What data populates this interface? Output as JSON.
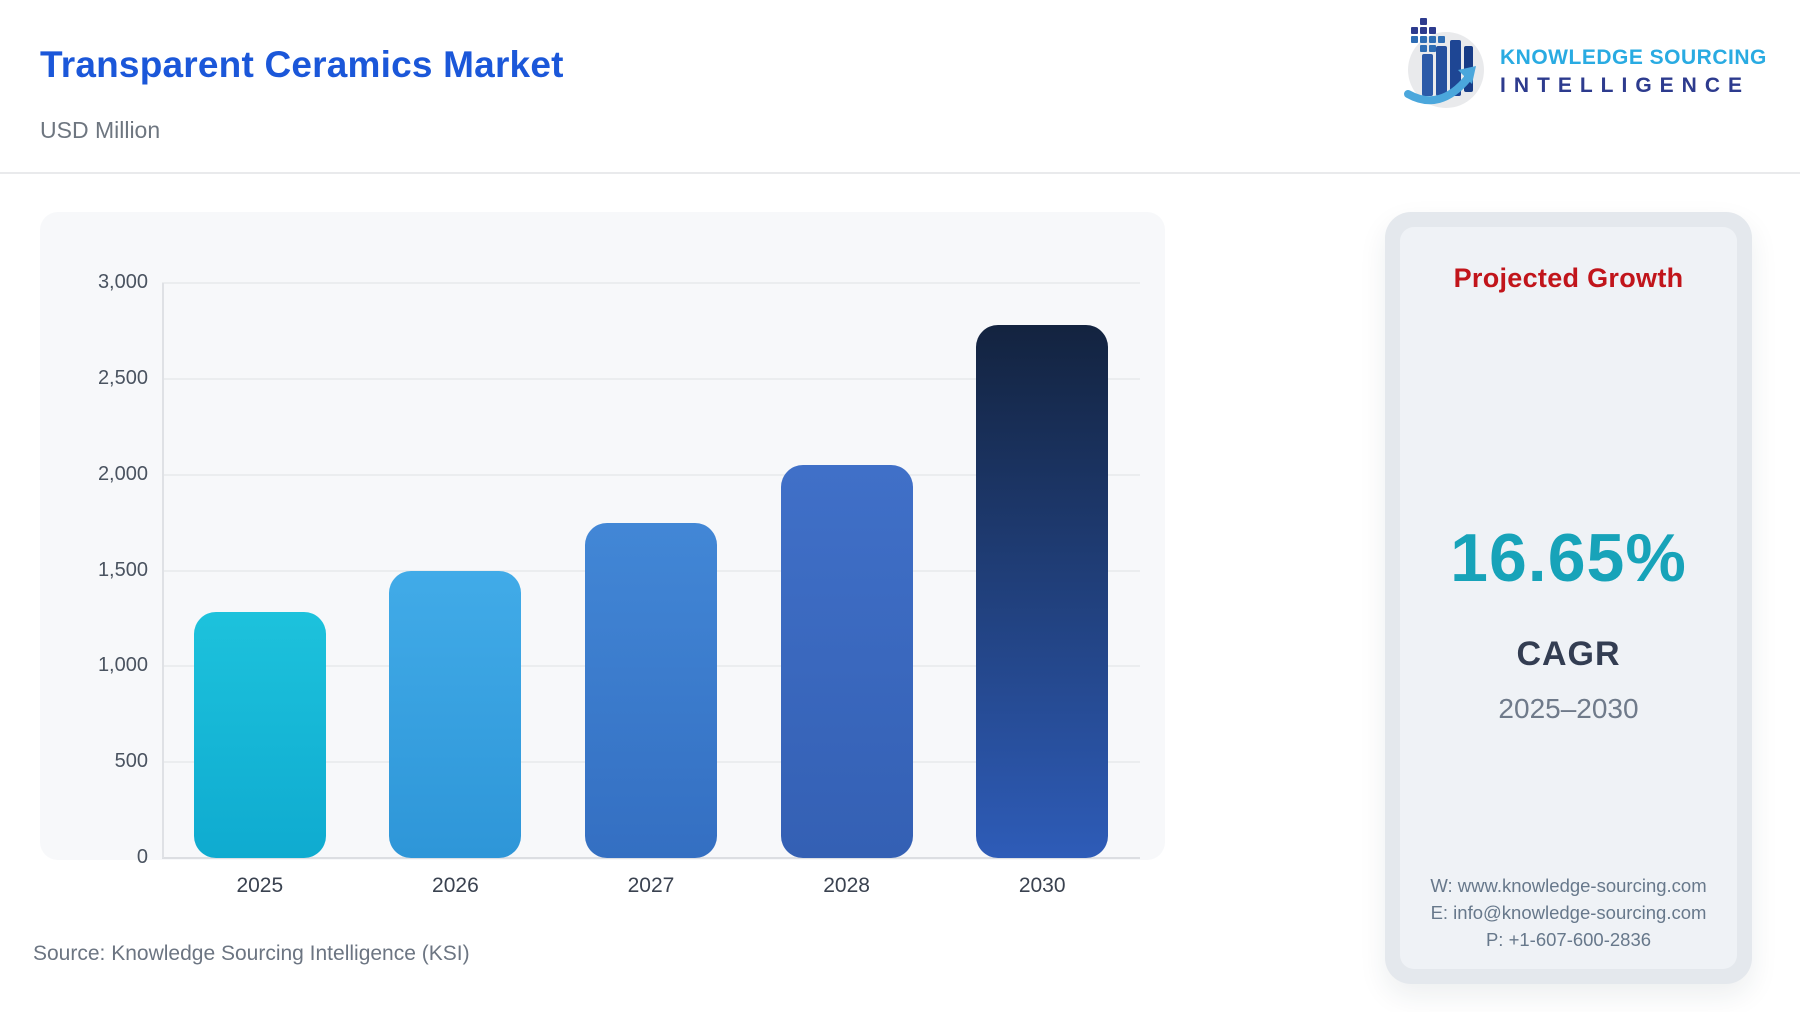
{
  "header": {
    "title": "Transparent Ceramics Market",
    "subtitle": "USD Million",
    "title_color": "#1B57D9"
  },
  "logo": {
    "line1": "KNOWLEDGE SOURCING",
    "line2": "INTELLIGENCE",
    "line1_color": "#29ABE2",
    "line2_color": "#2D3B8E"
  },
  "chart_data": {
    "type": "bar",
    "title": "Transparent Ceramics Market",
    "unit": "USD Million",
    "categories": [
      "2025",
      "2026",
      "2027",
      "2028",
      "2030"
    ],
    "values": [
      1285,
      1500,
      1750,
      2050,
      2780
    ],
    "bar_colors": [
      {
        "top": "#1DC2DC",
        "bottom": "#0FABD0"
      },
      {
        "top": "#41ABE8",
        "bottom": "#2E96D8"
      },
      {
        "top": "#4287D6",
        "bottom": "#346FC2"
      },
      {
        "top": "#4070C8",
        "bottom": "#3460B4"
      },
      {
        "top": "#13233F",
        "bottom": "#2E5CB8"
      }
    ],
    "ylim": [
      0,
      3000
    ],
    "ytick_labels": [
      "3,000",
      "2,500",
      "2,000",
      "1,500",
      "1,000",
      "500",
      "0"
    ],
    "grid": true,
    "legend_position": "none"
  },
  "side_panel": {
    "heading": "Projected Growth",
    "heading_color": "#C1151B",
    "cagr_value": "16.65%",
    "cagr_value_color": "#17A3B9",
    "cagr_label": "CAGR",
    "period": "2025–2030",
    "contact": {
      "website": "W: www.knowledge-sourcing.com",
      "email": "E: info@knowledge-sourcing.com",
      "phone": "P: +1-607-600-2836"
    }
  },
  "footer": {
    "source": "Source: Knowledge Sourcing Intelligence (KSI)"
  }
}
